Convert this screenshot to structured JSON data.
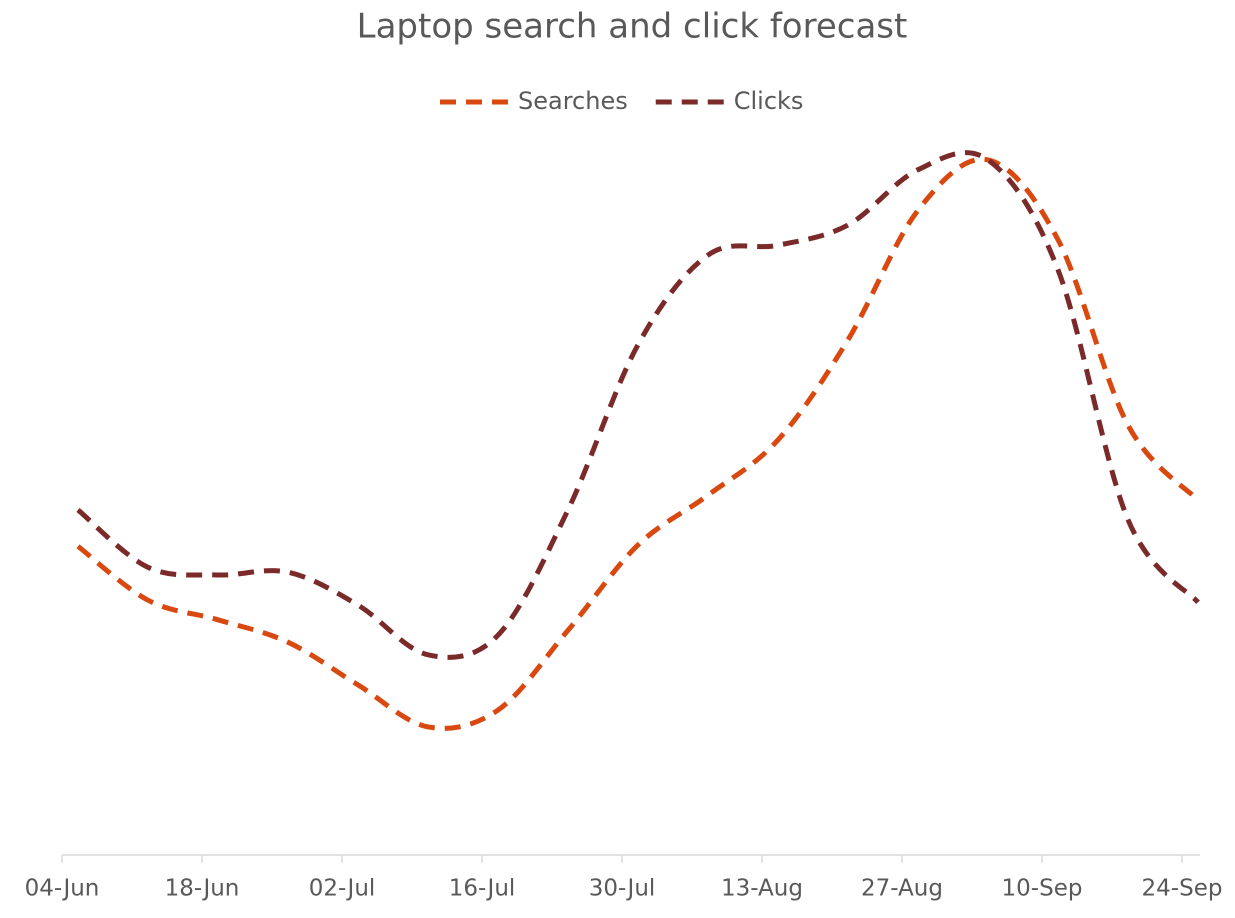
{
  "chart_data": {
    "type": "line",
    "title": "Laptop search and click forecast",
    "categories": [
      null,
      null,
      null,
      null,
      null,
      null,
      null,
      null,
      null,
      null,
      null,
      null,
      null,
      null,
      null,
      null,
      null
    ],
    "xticks": [
      "04-Jun",
      "18-Jun",
      "02-Jul",
      "16-Jul",
      "30-Jul",
      "13-Aug",
      "27-Aug",
      "10-Sep",
      "24-Sep"
    ],
    "series": [
      {
        "name": "Searches",
        "color": "#d9480f",
        "values": [
          44.1,
          36.4,
          33.6,
          30.4,
          24.3,
          18.3,
          20.7,
          32.1,
          44.3,
          51.4,
          59.3,
          73.6,
          92.1,
          99.3,
          87.9,
          61.4,
          50.7
        ]
      },
      {
        "name": "Clicks",
        "color": "#7b2a2a",
        "values": [
          49.3,
          41.1,
          40,
          40.4,
          35.7,
          28.6,
          31.4,
          49.3,
          72.9,
          85.7,
          87.1,
          90,
          97.9,
          99.3,
          83.6,
          47.9,
          36.1
        ]
      }
    ],
    "ylim": [
      0,
      100
    ],
    "legend": "top"
  }
}
